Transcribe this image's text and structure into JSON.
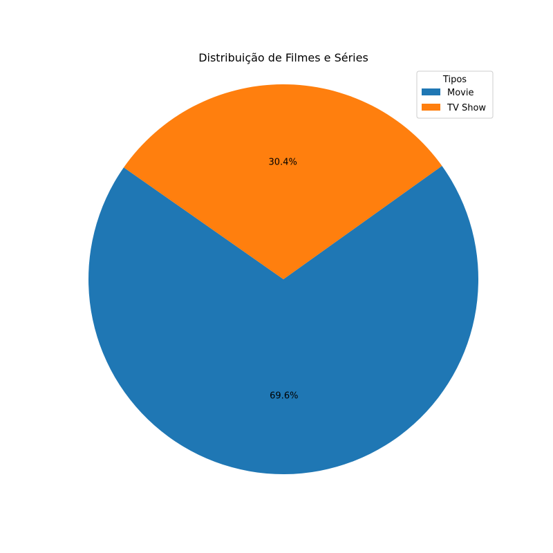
{
  "chart_data": {
    "type": "pie",
    "title": "Distribuição de Filmes e Séries",
    "categories": [
      "Movie",
      "TV Show"
    ],
    "values": [
      69.6,
      30.4
    ],
    "labels": [
      "69.6%",
      "30.4%"
    ],
    "colors": [
      "#1f77b4",
      "#ff7f0e"
    ],
    "start_angle_deg": 145,
    "direction": "counterclockwise",
    "legend": {
      "title": "Tipos",
      "placement": "top-right"
    }
  }
}
